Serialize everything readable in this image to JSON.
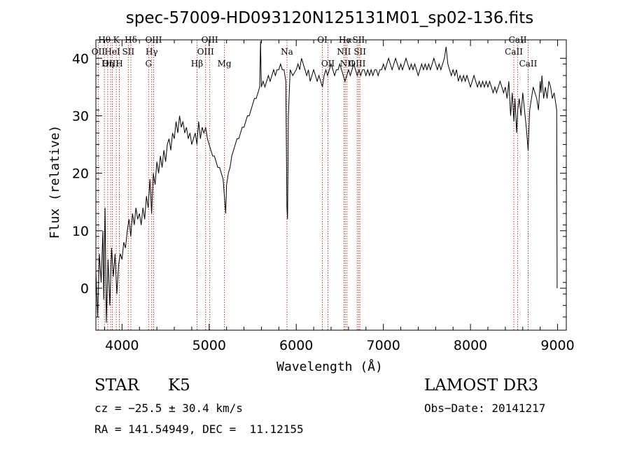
{
  "chart_data": {
    "type": "line",
    "title": "spec-57009-HD093120N125131M01_sp02-136.fits",
    "xlabel": "Wavelength (Å)",
    "ylabel": "Flux (relative)",
    "xlim": [
      3700,
      9100
    ],
    "ylim": [
      -7.3,
      43.2
    ],
    "xticks": [
      4000,
      5000,
      6000,
      7000,
      8000,
      9000
    ],
    "yticks": [
      0,
      10,
      20,
      30,
      40
    ],
    "grid": false,
    "colors": {
      "spectrum": "#000000",
      "lines": "#c0392b"
    },
    "series": [
      {
        "name": "spectrum",
        "points": [
          [
            3700,
            3
          ],
          [
            3720,
            -5
          ],
          [
            3740,
            6
          ],
          [
            3760,
            1
          ],
          [
            3780,
            10
          ],
          [
            3790,
            -2
          ],
          [
            3805,
            14
          ],
          [
            3820,
            -6
          ],
          [
            3840,
            5
          ],
          [
            3860,
            -3
          ],
          [
            3880,
            7
          ],
          [
            3900,
            2
          ],
          [
            3920,
            6
          ],
          [
            3940,
            -1
          ],
          [
            3960,
            4
          ],
          [
            3980,
            6
          ],
          [
            4000,
            5
          ],
          [
            4020,
            8
          ],
          [
            4040,
            7
          ],
          [
            4060,
            10
          ],
          [
            4080,
            12
          ],
          [
            4100,
            9
          ],
          [
            4120,
            13
          ],
          [
            4140,
            11
          ],
          [
            4160,
            14
          ],
          [
            4180,
            12
          ],
          [
            4200,
            13
          ],
          [
            4220,
            11
          ],
          [
            4240,
            14
          ],
          [
            4260,
            12
          ],
          [
            4280,
            16
          ],
          [
            4300,
            14
          ],
          [
            4320,
            19
          ],
          [
            4340,
            13
          ],
          [
            4360,
            20
          ],
          [
            4380,
            18
          ],
          [
            4400,
            22
          ],
          [
            4420,
            20
          ],
          [
            4440,
            23
          ],
          [
            4460,
            21
          ],
          [
            4480,
            24
          ],
          [
            4500,
            22
          ],
          [
            4520,
            25
          ],
          [
            4540,
            26
          ],
          [
            4560,
            24
          ],
          [
            4580,
            27
          ],
          [
            4600,
            26
          ],
          [
            4620,
            29
          ],
          [
            4640,
            27
          ],
          [
            4660,
            30
          ],
          [
            4680,
            28
          ],
          [
            4700,
            29
          ],
          [
            4720,
            27
          ],
          [
            4740,
            28
          ],
          [
            4760,
            26
          ],
          [
            4780,
            27
          ],
          [
            4800,
            25
          ],
          [
            4820,
            26
          ],
          [
            4840,
            27
          ],
          [
            4860,
            25
          ],
          [
            4880,
            29
          ],
          [
            4900,
            26
          ],
          [
            4920,
            28
          ],
          [
            4940,
            27
          ],
          [
            4960,
            28
          ],
          [
            4980,
            26
          ],
          [
            5000,
            25
          ],
          [
            5020,
            24
          ],
          [
            5040,
            23
          ],
          [
            5060,
            23
          ],
          [
            5080,
            22
          ],
          [
            5100,
            21
          ],
          [
            5120,
            21
          ],
          [
            5140,
            20
          ],
          [
            5160,
            19
          ],
          [
            5180,
            15
          ],
          [
            5190,
            13
          ],
          [
            5200,
            18
          ],
          [
            5220,
            20
          ],
          [
            5240,
            21
          ],
          [
            5260,
            23
          ],
          [
            5280,
            24
          ],
          [
            5300,
            25
          ],
          [
            5320,
            26
          ],
          [
            5340,
            26
          ],
          [
            5360,
            27
          ],
          [
            5380,
            28
          ],
          [
            5400,
            28
          ],
          [
            5420,
            29
          ],
          [
            5440,
            30
          ],
          [
            5460,
            30
          ],
          [
            5480,
            31
          ],
          [
            5500,
            32
          ],
          [
            5520,
            33
          ],
          [
            5540,
            33
          ],
          [
            5560,
            34
          ],
          [
            5580,
            35
          ],
          [
            5590,
            43
          ],
          [
            5600,
            35
          ],
          [
            5620,
            36
          ],
          [
            5640,
            35
          ],
          [
            5660,
            36
          ],
          [
            5680,
            37
          ],
          [
            5700,
            36
          ],
          [
            5720,
            37
          ],
          [
            5740,
            38
          ],
          [
            5760,
            37
          ],
          [
            5780,
            38
          ],
          [
            5800,
            38
          ],
          [
            5820,
            39
          ],
          [
            5840,
            38
          ],
          [
            5860,
            38
          ],
          [
            5880,
            36
          ],
          [
            5893,
            14
          ],
          [
            5900,
            12
          ],
          [
            5910,
            30
          ],
          [
            5930,
            38
          ],
          [
            5960,
            37
          ],
          [
            6000,
            38
          ],
          [
            6020,
            39
          ],
          [
            6040,
            38
          ],
          [
            6060,
            40
          ],
          [
            6080,
            39
          ],
          [
            6100,
            38
          ],
          [
            6120,
            37
          ],
          [
            6140,
            38
          ],
          [
            6160,
            36
          ],
          [
            6180,
            37
          ],
          [
            6200,
            38
          ],
          [
            6220,
            37
          ],
          [
            6240,
            36
          ],
          [
            6260,
            37
          ],
          [
            6280,
            36
          ],
          [
            6300,
            35
          ],
          [
            6320,
            37
          ],
          [
            6340,
            38
          ],
          [
            6360,
            37
          ],
          [
            6380,
            38
          ],
          [
            6400,
            39
          ],
          [
            6420,
            38
          ],
          [
            6440,
            37
          ],
          [
            6460,
            38
          ],
          [
            6480,
            38
          ],
          [
            6500,
            39
          ],
          [
            6520,
            38
          ],
          [
            6540,
            37
          ],
          [
            6560,
            36
          ],
          [
            6580,
            37
          ],
          [
            6600,
            38
          ],
          [
            6620,
            37
          ],
          [
            6640,
            38
          ],
          [
            6660,
            39
          ],
          [
            6680,
            38
          ],
          [
            6700,
            37
          ],
          [
            6720,
            38
          ],
          [
            6740,
            37
          ],
          [
            6760,
            38
          ],
          [
            6780,
            38
          ],
          [
            6800,
            37
          ],
          [
            6820,
            38
          ],
          [
            6840,
            37
          ],
          [
            6860,
            38
          ],
          [
            6880,
            37
          ],
          [
            6900,
            38
          ],
          [
            6920,
            38
          ],
          [
            6940,
            37
          ],
          [
            6960,
            38
          ],
          [
            6980,
            38
          ],
          [
            7000,
            39
          ],
          [
            7020,
            38
          ],
          [
            7040,
            39
          ],
          [
            7060,
            40
          ],
          [
            7080,
            39
          ],
          [
            7100,
            38
          ],
          [
            7120,
            39
          ],
          [
            7140,
            40
          ],
          [
            7160,
            39
          ],
          [
            7180,
            38
          ],
          [
            7200,
            39
          ],
          [
            7220,
            38
          ],
          [
            7240,
            39
          ],
          [
            7260,
            40
          ],
          [
            7280,
            39
          ],
          [
            7300,
            38
          ],
          [
            7320,
            39
          ],
          [
            7340,
            38
          ],
          [
            7360,
            39
          ],
          [
            7380,
            38
          ],
          [
            7400,
            37
          ],
          [
            7420,
            38
          ],
          [
            7440,
            39
          ],
          [
            7460,
            38
          ],
          [
            7480,
            39
          ],
          [
            7500,
            38
          ],
          [
            7520,
            39
          ],
          [
            7540,
            38
          ],
          [
            7560,
            39
          ],
          [
            7580,
            40
          ],
          [
            7600,
            39
          ],
          [
            7620,
            38
          ],
          [
            7640,
            39
          ],
          [
            7660,
            38
          ],
          [
            7680,
            39
          ],
          [
            7700,
            40
          ],
          [
            7720,
            42
          ],
          [
            7740,
            39
          ],
          [
            7760,
            38
          ],
          [
            7780,
            37
          ],
          [
            7800,
            38
          ],
          [
            7820,
            37
          ],
          [
            7840,
            38
          ],
          [
            7860,
            36
          ],
          [
            7880,
            37
          ],
          [
            7900,
            36
          ],
          [
            7920,
            37
          ],
          [
            7940,
            36
          ],
          [
            7960,
            37
          ],
          [
            7980,
            36
          ],
          [
            8000,
            35
          ],
          [
            8020,
            36
          ],
          [
            8040,
            37
          ],
          [
            8060,
            36
          ],
          [
            8080,
            35
          ],
          [
            8100,
            36
          ],
          [
            8120,
            35
          ],
          [
            8140,
            36
          ],
          [
            8160,
            35
          ],
          [
            8180,
            36
          ],
          [
            8200,
            35
          ],
          [
            8220,
            36
          ],
          [
            8240,
            35
          ],
          [
            8260,
            34
          ],
          [
            8280,
            35
          ],
          [
            8300,
            34
          ],
          [
            8320,
            35
          ],
          [
            8340,
            36
          ],
          [
            8360,
            35
          ],
          [
            8380,
            34
          ],
          [
            8400,
            35
          ],
          [
            8420,
            33
          ],
          [
            8440,
            36
          ],
          [
            8460,
            30
          ],
          [
            8480,
            34
          ],
          [
            8498,
            29
          ],
          [
            8510,
            33
          ],
          [
            8530,
            27
          ],
          [
            8542,
            31
          ],
          [
            8560,
            33
          ],
          [
            8580,
            30
          ],
          [
            8600,
            34
          ],
          [
            8620,
            31
          ],
          [
            8640,
            28
          ],
          [
            8662,
            24
          ],
          [
            8680,
            31
          ],
          [
            8700,
            33
          ],
          [
            8720,
            35
          ],
          [
            8740,
            34
          ],
          [
            8760,
            33
          ],
          [
            8780,
            31
          ],
          [
            8800,
            36
          ],
          [
            8810,
            34
          ],
          [
            8820,
            37
          ],
          [
            8840,
            33
          ],
          [
            8860,
            35
          ],
          [
            8880,
            33
          ],
          [
            8900,
            36
          ],
          [
            8920,
            35
          ],
          [
            8940,
            33
          ],
          [
            8960,
            34
          ],
          [
            8980,
            32
          ],
          [
            8990,
            31
          ],
          [
            8994,
            6
          ],
          [
            8995,
            0
          ]
        ]
      }
    ],
    "annotations": [
      {
        "label": "Hθ",
        "x": 3798,
        "row": 1
      },
      {
        "label": "OII",
        "x": 3727,
        "row": 2
      },
      {
        "label": "OIII",
        "x": 3869,
        "row": 3
      },
      {
        "label": "K",
        "x": 3934,
        "row": 1
      },
      {
        "label": "HeI",
        "x": 3889,
        "row": 2
      },
      {
        "label": "Hη",
        "x": 3835,
        "row": 3
      },
      {
        "label": "SII",
        "x": 4072,
        "row": 2
      },
      {
        "label": "H",
        "x": 3969,
        "row": 3
      },
      {
        "label": "Hδ",
        "x": 4102,
        "row": 1
      },
      {
        "label": "OIII",
        "x": 4363,
        "row": 1
      },
      {
        "label": "Hγ",
        "x": 4341,
        "row": 2
      },
      {
        "label": "G",
        "x": 4305,
        "row": 3
      },
      {
        "label": "Hβ",
        "x": 4861,
        "row": 3
      },
      {
        "label": "OIII",
        "x": 5007,
        "row": 1
      },
      {
        "label": "OIII",
        "x": 4959,
        "row": 2
      },
      {
        "label": "Mg",
        "x": 5175,
        "row": 3
      },
      {
        "label": "Na",
        "x": 5893,
        "row": 2
      },
      {
        "label": "OI",
        "x": 6300,
        "row": 1
      },
      {
        "label": "OII",
        "x": 6364,
        "row": 3
      },
      {
        "label": "Hα",
        "x": 6563,
        "row": 1
      },
      {
        "label": "SII",
        "x": 6716,
        "row": 1
      },
      {
        "label": "NII",
        "x": 6548,
        "row": 2
      },
      {
        "label": "SII",
        "x": 6731,
        "row": 2
      },
      {
        "label": "NII",
        "x": 6583,
        "row": 3
      },
      {
        "label": "OIII",
        "x": 6700,
        "row": 3
      },
      {
        "label": "CaII",
        "x": 8542,
        "row": 1
      },
      {
        "label": "CaII",
        "x": 8498,
        "row": 2
      },
      {
        "label": "CaII",
        "x": 8662,
        "row": 3
      }
    ]
  },
  "info": {
    "class": "STAR",
    "subclass": "K5",
    "survey": "LAMOST DR3",
    "cz": "cz = −25.5 ± 30.4 km/s",
    "obs_date": "Obs−Date: 20141217",
    "coords": "RA = 141.54949, DEC =  11.12155"
  }
}
